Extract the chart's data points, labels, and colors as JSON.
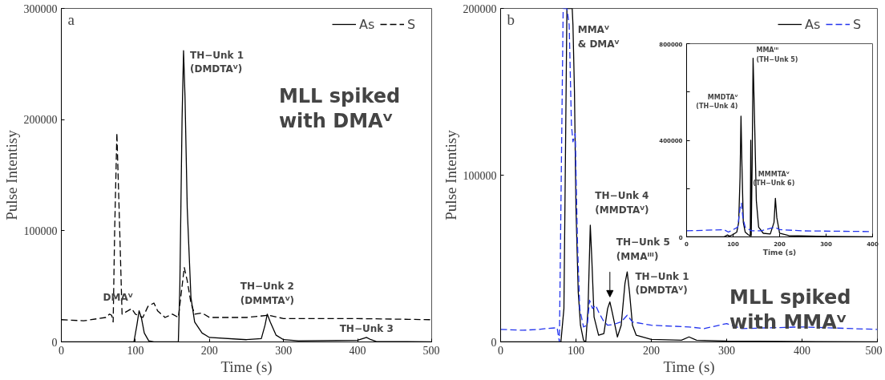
{
  "chart_data": [
    {
      "type": "line",
      "title": "a",
      "subtitle": "MLL spiked\nwith DMAⱽ",
      "xlabel": "Time (s)",
      "ylabel": "Pulse Intentisy",
      "xlim": [
        0,
        500
      ],
      "ylim": [
        0,
        300000
      ],
      "xticks": [
        0,
        100,
        200,
        300,
        400,
        500
      ],
      "yticks": [
        0,
        100000,
        200000,
        300000
      ],
      "legend": "top right",
      "series": [
        {
          "name": "As",
          "color": "#000000",
          "line_style": "solid",
          "x": [
            0,
            98,
            102,
            105,
            108,
            112,
            118,
            125,
            157,
            158,
            160,
            163,
            165,
            167,
            170,
            175,
            180,
            190,
            200,
            250,
            270,
            275,
            278,
            282,
            290,
            300,
            320,
            400,
            407,
            412,
            418,
            425,
            500
          ],
          "values": [
            0,
            0,
            15000,
            28000,
            22000,
            8000,
            1000,
            0,
            0,
            0,
            50000,
            200000,
            262000,
            220000,
            120000,
            40000,
            18000,
            8000,
            4000,
            2000,
            3000,
            15000,
            25000,
            18000,
            6000,
            2000,
            1000,
            1500,
            3000,
            4000,
            2000,
            500,
            0
          ]
        },
        {
          "name": "S",
          "color": "#000000",
          "line_style": "dashed",
          "x": [
            0,
            30,
            60,
            65,
            68,
            70,
            72,
            75,
            78,
            82,
            90,
            95,
            100,
            110,
            117,
            125,
            130,
            140,
            150,
            158,
            163,
            166,
            170,
            175,
            180,
            190,
            200,
            250,
            280,
            300,
            400,
            500
          ],
          "values": [
            20000,
            19000,
            22000,
            25000,
            24000,
            18000,
            100000,
            188000,
            120000,
            25000,
            28000,
            30000,
            25000,
            22000,
            32000,
            35000,
            28000,
            22000,
            25000,
            22000,
            50000,
            67000,
            55000,
            35000,
            25000,
            26000,
            22000,
            22000,
            24000,
            21000,
            21000,
            20000
          ]
        }
      ],
      "annotations": [
        {
          "text": "DMAⱽ",
          "x": 105,
          "y": 28000
        },
        {
          "text": "TH−Unk 1\n(DMDTAⱽ)",
          "x": 165,
          "y": 262000
        },
        {
          "text": "TH−Unk 2\n(DMMTAⱽ)",
          "x": 278,
          "y": 25000
        },
        {
          "text": "TH−Unk 3",
          "x": 412,
          "y": 4000
        }
      ]
    },
    {
      "type": "line",
      "title": "b",
      "subtitle": "MLL spiked\nwith MMAⱽ",
      "xlabel": "Time (s)",
      "ylabel": "Pulse Intentisy",
      "xlim": [
        0,
        500
      ],
      "ylim": [
        0,
        200000
      ],
      "xticks": [
        0,
        100,
        200,
        300,
        400,
        500
      ],
      "yticks": [
        0,
        100000,
        200000
      ],
      "legend": "top right",
      "series": [
        {
          "name": "As",
          "color": "#000000",
          "line_style": "solid",
          "x": [
            0,
            80,
            84,
            88,
            95,
            96,
            98,
            100,
            103,
            106,
            110,
            113,
            116,
            119,
            121,
            124,
            130,
            137,
            142,
            145,
            148,
            155,
            160,
            165,
            168,
            171,
            175,
            180,
            200,
            240,
            250,
            260,
            300,
            500
          ],
          "values": [
            0,
            0,
            20000,
            200000,
            200000,
            190000,
            150000,
            80000,
            30000,
            10000,
            1000,
            0,
            20000,
            70000,
            50000,
            15000,
            4000,
            5000,
            20000,
            24000,
            18000,
            3000,
            10000,
            35000,
            42000,
            30000,
            10000,
            4000,
            1500,
            1000,
            3000,
            1000,
            500,
            0
          ]
        },
        {
          "name": "S",
          "color": "#2233ee",
          "line_style": "dashed",
          "x": [
            0,
            30,
            50,
            60,
            75,
            78,
            80,
            83,
            88,
            91,
            94,
            96,
            99,
            102,
            105,
            110,
            115,
            118,
            122,
            126,
            130,
            136,
            142,
            150,
            160,
            168,
            175,
            200,
            250,
            270,
            300,
            320,
            400,
            500
          ],
          "values": [
            7500,
            7000,
            7500,
            8000,
            8500,
            0,
            80000,
            200000,
            200000,
            190000,
            130000,
            120000,
            125000,
            60000,
            20000,
            9000,
            10000,
            25000,
            20000,
            22000,
            18000,
            13000,
            10000,
            10500,
            12000,
            16000,
            12000,
            10000,
            9000,
            8000,
            11000,
            8000,
            9000,
            7500
          ]
        }
      ],
      "annotations": [
        {
          "text": "MMAⱽ\n& DMAⱽ",
          "x": 96,
          "y": 185000
        },
        {
          "text": "TH−Unk 4\n(MMDTAⱽ)",
          "x": 119,
          "y": 70000
        },
        {
          "text": "TH−Unk 5\n(MMAᴵᴵᴵ)",
          "x": 145,
          "y": 24000
        },
        {
          "text": "TH−Unk 1\n(DMDTAⱽ)",
          "x": 168,
          "y": 42000
        }
      ]
    },
    {
      "type": "line",
      "xlabel": "Time (s)",
      "xlim": [
        0,
        400
      ],
      "ylim": [
        0,
        800000
      ],
      "xticks": [
        0,
        100,
        200,
        300,
        400
      ],
      "yticks": [
        0,
        {
          "value": 200000,
          "label": null
        },
        400000,
        {
          "value": 600000,
          "label": null
        },
        800000
      ],
      "series": [
        {
          "color": "#000000",
          "line_style": "solid",
          "x": [
            0,
            80,
            88,
            92,
            100,
            108,
            112,
            115,
            117,
            119,
            122,
            126,
            132,
            136,
            137,
            138,
            139,
            141,
            143,
            146,
            150,
            155,
            165,
            180,
            188,
            191,
            194,
            200,
            220,
            300,
            400
          ],
          "values": [
            0,
            0,
            8000,
            3000,
            10000,
            20000,
            60000,
            250000,
            500000,
            300000,
            60000,
            20000,
            10000,
            5000,
            5000,
            400000,
            5000,
            300000,
            740000,
            500000,
            150000,
            40000,
            15000,
            12000,
            60000,
            160000,
            80000,
            15000,
            5000,
            2000,
            0
          ]
        },
        {
          "color": "#2233ee",
          "line_style": "dashed",
          "x": [
            0,
            80,
            90,
            100,
            110,
            115,
            118,
            121,
            126,
            140,
            160,
            190,
            200,
            250,
            400
          ],
          "values": [
            25000,
            30000,
            20000,
            30000,
            40000,
            120000,
            140000,
            80000,
            40000,
            25000,
            25000,
            40000,
            30000,
            25000,
            22000
          ]
        }
      ],
      "annotations": [
        {
          "text": "MMDTAⱽ\n(TH−Unk 4)",
          "x": 117,
          "y": 500000
        },
        {
          "text": "MMAᴵᴵᴵ\n(TH−Unk 5)",
          "x": 143,
          "y": 740000
        },
        {
          "text": "MMMTAⱽ\n(TH−Unk 6)",
          "x": 191,
          "y": 160000
        }
      ]
    }
  ]
}
